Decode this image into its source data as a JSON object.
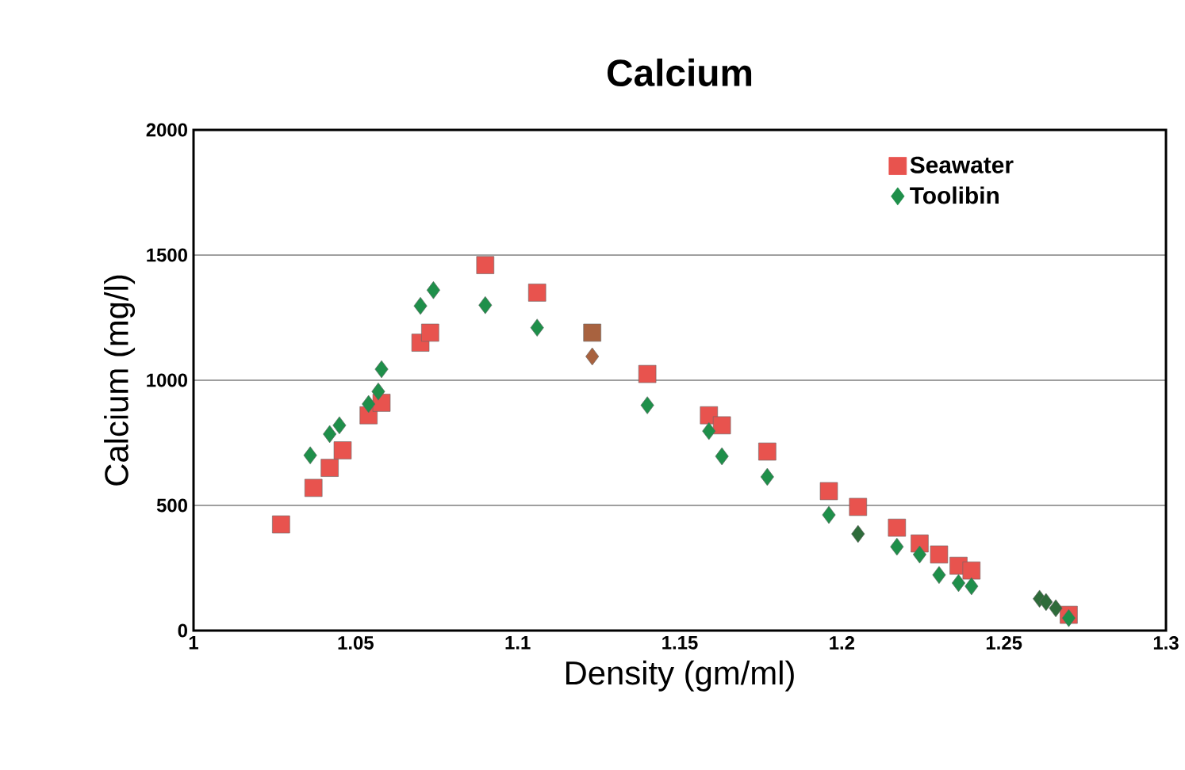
{
  "chart_data": {
    "type": "scatter",
    "title": "Calcium",
    "xlabel": "Density (gm/ml)",
    "ylabel": "Calcium (mg/l)",
    "xlim": [
      1,
      1.3
    ],
    "xticks": [
      1,
      1.05,
      1.1,
      1.15,
      1.2,
      1.25,
      1.3
    ],
    "ylim": [
      0,
      2000
    ],
    "yticks": [
      0,
      500,
      1000,
      1500,
      2000
    ],
    "grid": "y",
    "legend": "top right",
    "series": [
      {
        "name": "Seawater",
        "color": "#e8534e",
        "marker": "square",
        "x": [
          1.027,
          1.037,
          1.042,
          1.046,
          1.054,
          1.058,
          1.07,
          1.073,
          1.09,
          1.106,
          1.123,
          1.14,
          1.159,
          1.163,
          1.177,
          1.196,
          1.205,
          1.217,
          1.224,
          1.23,
          1.236,
          1.24,
          1.27
        ],
        "values": [
          424,
          570,
          650,
          720,
          860,
          910,
          1150,
          1190,
          1460,
          1350,
          1190,
          1025,
          860,
          820,
          715,
          557,
          494,
          411,
          348,
          304,
          259,
          240,
          63
        ],
        "colors": [
          "#e8534e",
          "#e8534e",
          "#e8534e",
          "#e8534e",
          "#e8534e",
          "#e8534e",
          "#e8534e",
          "#e8534e",
          "#e8534e",
          "#e8534e",
          "#a8623f",
          "#e8534e",
          "#e8534e",
          "#e8534e",
          "#e8534e",
          "#e8534e",
          "#e8534e",
          "#e8534e",
          "#e8534e",
          "#e8534e",
          "#e8534e",
          "#e8534e",
          "#e8534e"
        ]
      },
      {
        "name": "Toolibin",
        "color": "#1f8f4a",
        "marker": "diamond",
        "x": [
          1.036,
          1.042,
          1.045,
          1.054,
          1.057,
          1.058,
          1.07,
          1.074,
          1.09,
          1.106,
          1.123,
          1.14,
          1.159,
          1.163,
          1.177,
          1.196,
          1.205,
          1.217,
          1.224,
          1.23,
          1.236,
          1.24,
          1.261,
          1.263,
          1.266,
          1.27
        ],
        "values": [
          700,
          785,
          820,
          905,
          955,
          1044,
          1297,
          1360,
          1300,
          1210,
          1095,
          900,
          797,
          696,
          614,
          462,
          386,
          335,
          304,
          222,
          190,
          177,
          127,
          114,
          89,
          50
        ],
        "colors": [
          "#1f8f4a",
          "#1f8f4a",
          "#1f8f4a",
          "#1f8f4a",
          "#1f8f4a",
          "#1f8f4a",
          "#1f8f4a",
          "#1f8f4a",
          "#1f8f4a",
          "#1f8f4a",
          "#a8623f",
          "#1f8f4a",
          "#1f8f4a",
          "#1f8f4a",
          "#1f8f4a",
          "#1f8f4a",
          "#2e6b3a",
          "#1f8f4a",
          "#1f8f4a",
          "#1f8f4a",
          "#1f8f4a",
          "#1f8f4a",
          "#2e6b3a",
          "#2e6b3a",
          "#2e6b3a",
          "#1f8f4a"
        ]
      }
    ]
  }
}
